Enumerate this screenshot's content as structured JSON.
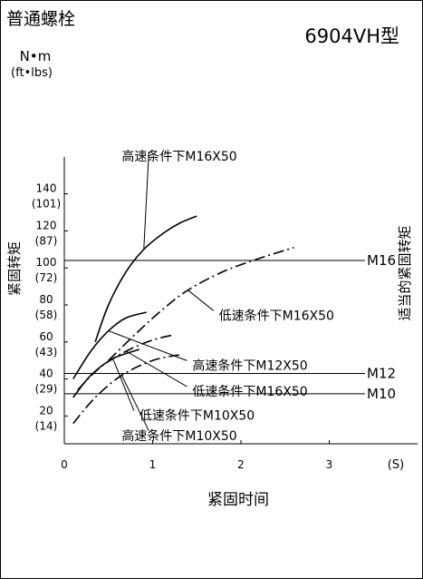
{
  "chart_data": {
    "type": "line",
    "title": "普通螺栓",
    "subtitle": "6904VH型",
    "ylabel_unit": "N•m",
    "ylabel_unit_alt": "(ft•lbs)",
    "ylabel": "紧固转矩",
    "xlabel": "紧固时间",
    "xunit": "(S)",
    "right_label": "适当的紧固转矩",
    "xlim": [
      0,
      4
    ],
    "ylim": [
      5,
      160
    ],
    "x_ticks": [
      {
        "value": 0,
        "label": "0"
      },
      {
        "value": 1,
        "label": "1"
      },
      {
        "value": 2,
        "label": "2"
      },
      {
        "value": 3,
        "label": "3"
      }
    ],
    "y_ticks": [
      {
        "value": 20,
        "label": "20",
        "alt": "(14)"
      },
      {
        "value": 40,
        "label": "40",
        "alt": "(29)"
      },
      {
        "value": 60,
        "label": "60",
        "alt": "(43)"
      },
      {
        "value": 80,
        "label": "80",
        "alt": "(58)"
      },
      {
        "value": 100,
        "label": "100",
        "alt": "(72)"
      },
      {
        "value": 120,
        "label": "120",
        "alt": "(87)"
      },
      {
        "value": 140,
        "label": "140",
        "alt": "(101)"
      }
    ],
    "reference_lines": [
      {
        "name": "M16",
        "y": 104
      },
      {
        "name": "M12",
        "y": 43
      },
      {
        "name": "M10",
        "y": 32
      }
    ],
    "series": [
      {
        "name": "高速条件下M16X50",
        "style": "solid",
        "x": [
          0.35,
          0.5,
          0.7,
          0.9,
          1.1,
          1.3,
          1.5
        ],
        "y": [
          60,
          80,
          98,
          110,
          118,
          124,
          128
        ],
        "label_anchor": [
          0.65,
          158
        ]
      },
      {
        "name": "低速条件下M16X50",
        "style": "dashdot",
        "x": [
          0.5,
          0.8,
          1.1,
          1.4,
          1.8,
          2.2,
          2.6
        ],
        "y": [
          50,
          64,
          77,
          88,
          98,
          105,
          111
        ],
        "label_anchor": [
          1.75,
          72
        ]
      },
      {
        "name": "高速条件下M12X50",
        "style": "solid",
        "x": [
          0.1,
          0.3,
          0.5,
          0.7,
          0.93
        ],
        "y": [
          40,
          55,
          66,
          73,
          76
        ],
        "label_anchor": [
          1.45,
          45
        ]
      },
      {
        "name": "低速条件下M16X50",
        "style": "dashdot",
        "x": [
          0.15,
          0.4,
          0.7,
          1.0,
          1.25
        ],
        "y": [
          34,
          46,
          55,
          61,
          64
        ],
        "label_anchor": [
          1.45,
          31
        ]
      },
      {
        "name": "低速条件下M10X50",
        "style": "solid",
        "x": [
          0.1,
          0.3,
          0.55,
          0.85
        ],
        "y": [
          30,
          42,
          51,
          56
        ],
        "label_anchor": [
          0.85,
          18
        ]
      },
      {
        "name": "高速条件下M10X50",
        "style": "dashdot",
        "x": [
          0.1,
          0.35,
          0.65,
          1.0,
          1.3
        ],
        "y": [
          16,
          30,
          42,
          50,
          53
        ],
        "label_anchor": [
          0.65,
          7
        ]
      }
    ]
  }
}
